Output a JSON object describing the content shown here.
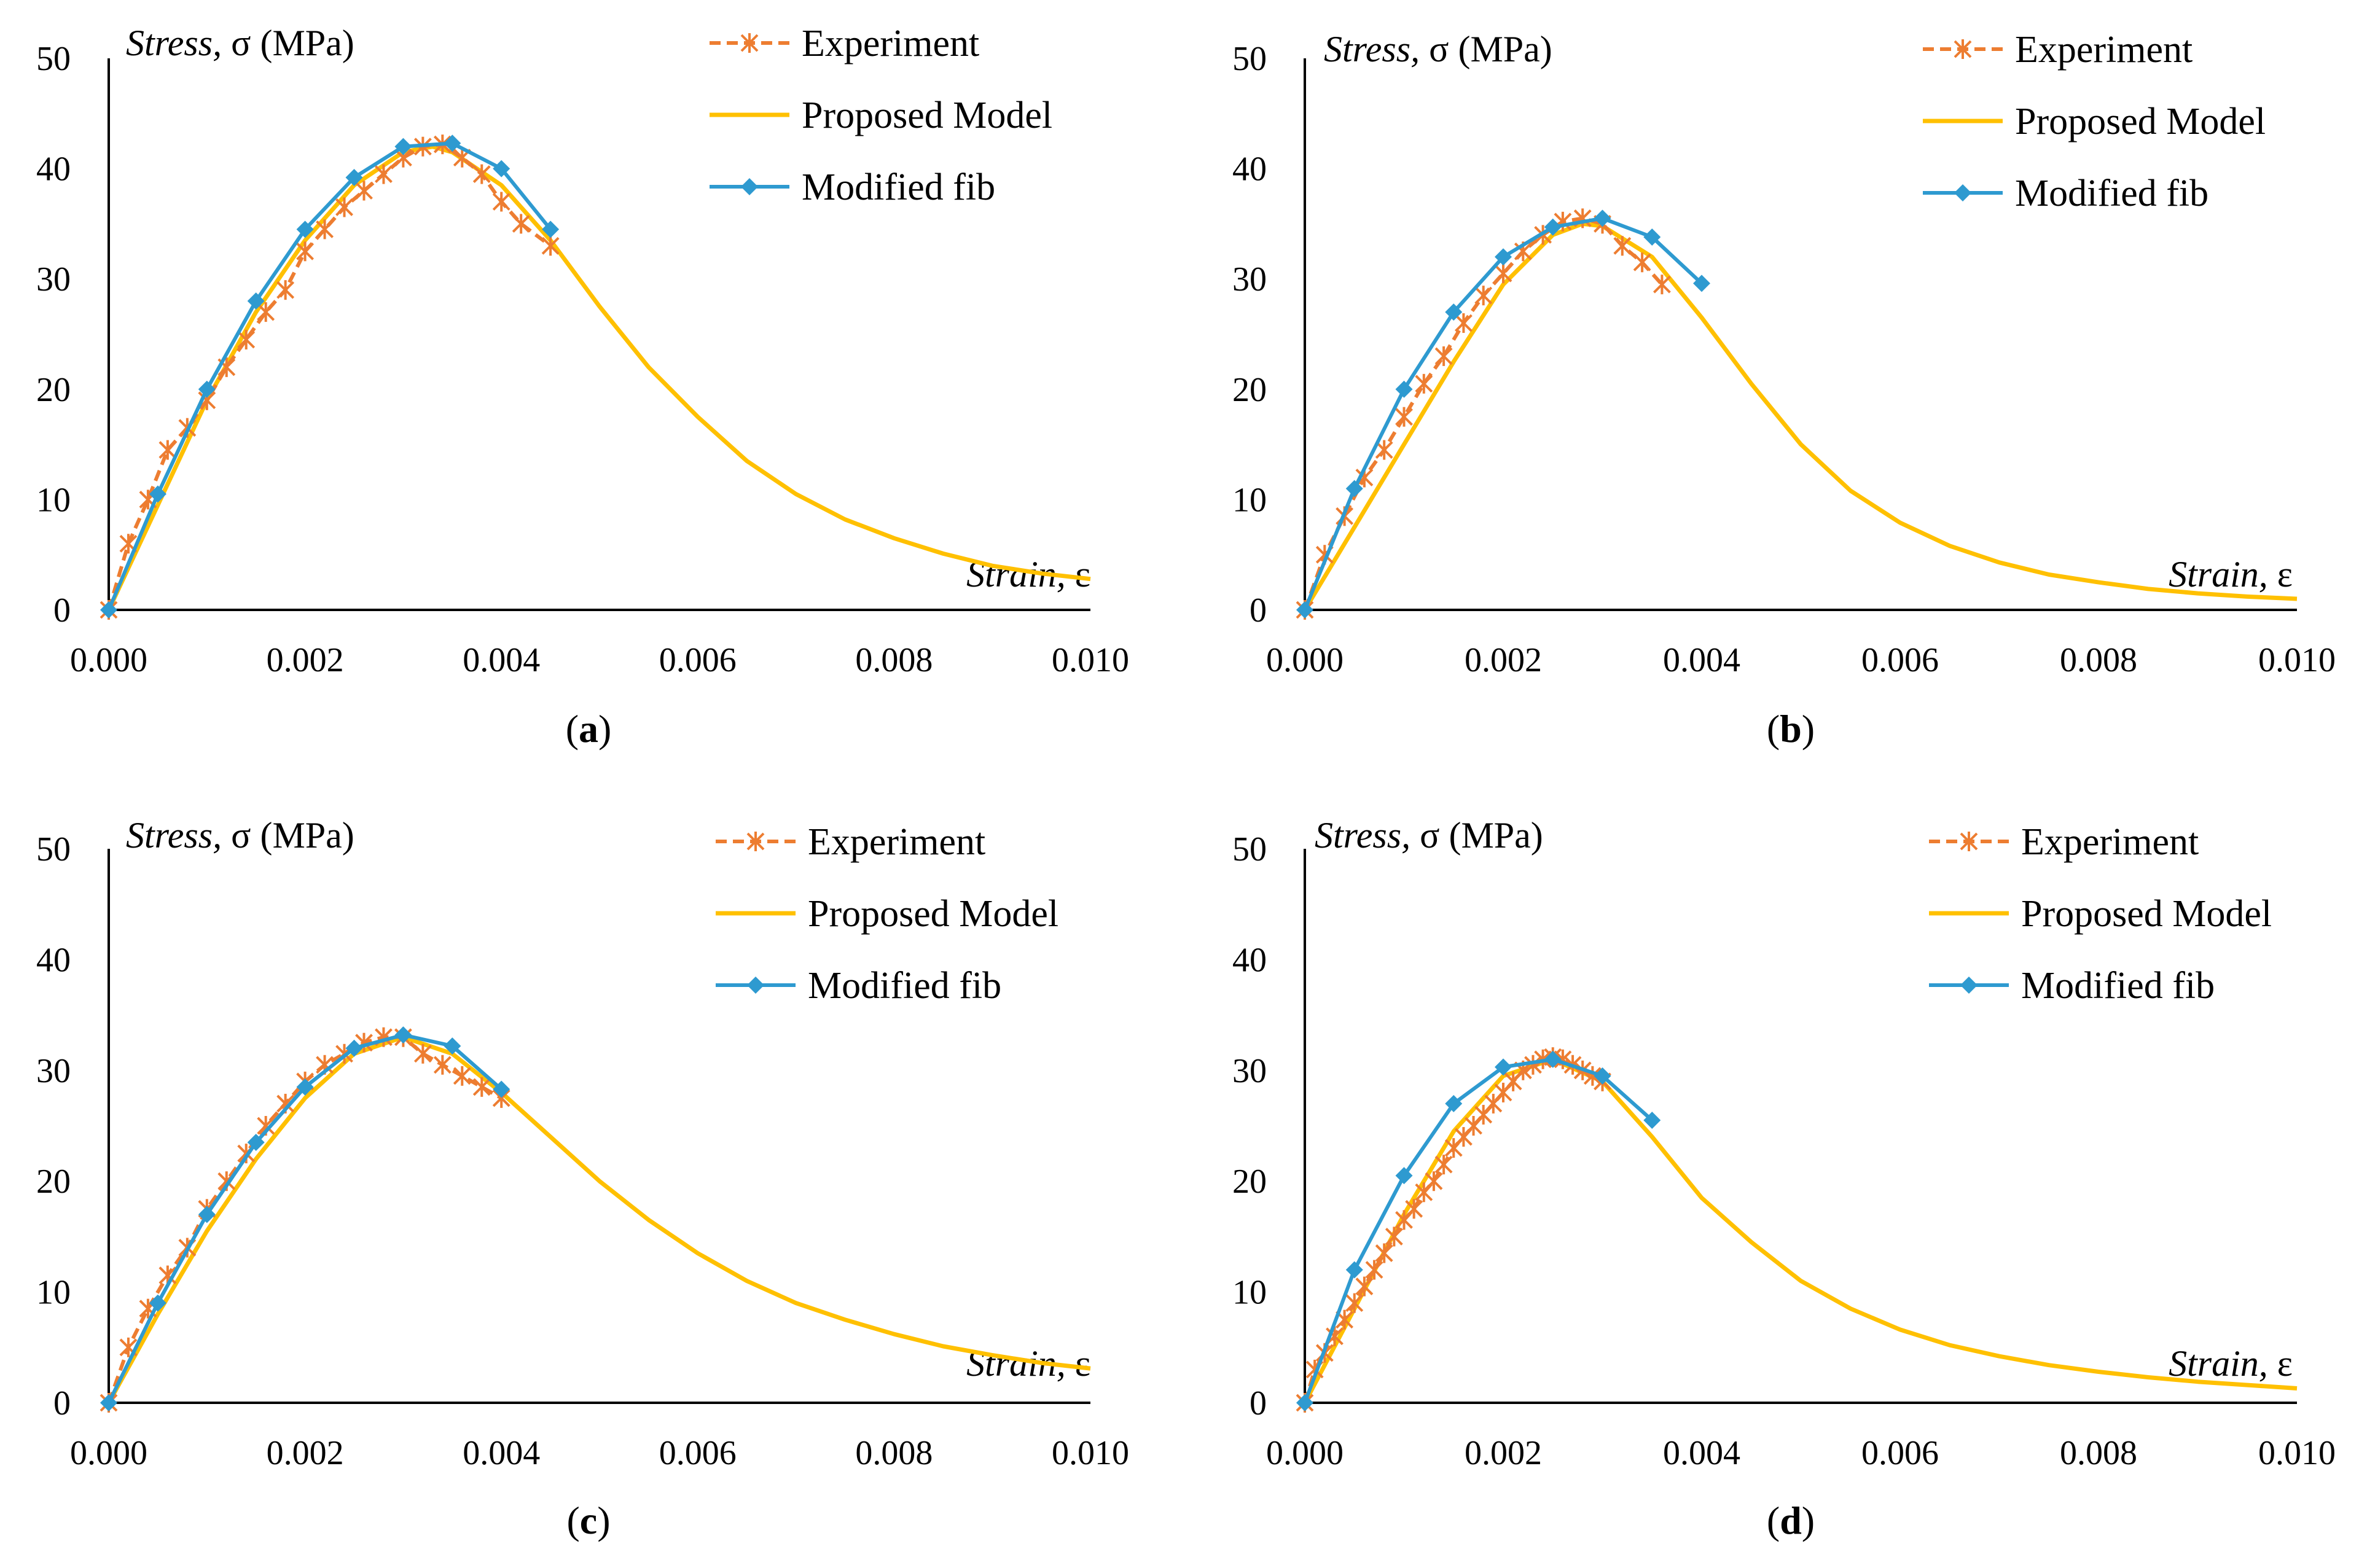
{
  "colors": {
    "experiment": "#ED7D31",
    "proposed": "#FFC000",
    "fib": "#2E9AD0",
    "axis": "#000000"
  },
  "chart_data": [
    {
      "panel": "a",
      "type": "line",
      "caption": "a",
      "ylabel_italic": "Stress,",
      "ylabel_rest": " σ (MPa)",
      "xlabel_italic": "Strain,",
      "xlabel_rest": " ε",
      "xlim": [
        0,
        0.01
      ],
      "ylim": [
        0,
        50
      ],
      "xticks": [
        "0.000",
        "0.002",
        "0.004",
        "0.006",
        "0.008",
        "0.010"
      ],
      "yticks": [
        "0",
        "10",
        "20",
        "30",
        "40",
        "50"
      ],
      "legend": [
        "Experiment",
        "Proposed Model",
        "Modified fib"
      ],
      "series": [
        {
          "name": "Experiment",
          "x": [
            0,
            0.0002,
            0.0004,
            0.0006,
            0.0008,
            0.001,
            0.0012,
            0.0014,
            0.0016,
            0.0018,
            0.002,
            0.0022,
            0.0024,
            0.0026,
            0.0028,
            0.003,
            0.0032,
            0.0034,
            0.0036,
            0.0038,
            0.004,
            0.0042,
            0.0045
          ],
          "y": [
            0,
            6,
            10,
            14.5,
            16.5,
            19,
            22,
            24.5,
            27,
            29,
            32.5,
            34.5,
            36.5,
            38,
            39.5,
            41,
            42,
            42.2,
            41,
            39.5,
            37,
            35,
            33
          ]
        },
        {
          "name": "Proposed Model",
          "x": [
            0,
            0.0005,
            0.001,
            0.0015,
            0.002,
            0.0025,
            0.003,
            0.0033,
            0.0035,
            0.004,
            0.0045,
            0.005,
            0.0055,
            0.006,
            0.0065,
            0.007,
            0.0075,
            0.008,
            0.0085,
            0.009,
            0.0095,
            0.01
          ],
          "y": [
            0,
            9.5,
            19,
            27,
            33.5,
            38.5,
            41.5,
            42,
            41.5,
            38.5,
            33.5,
            27.5,
            22,
            17.5,
            13.5,
            10.5,
            8.2,
            6.5,
            5.1,
            4,
            3.3,
            2.8
          ]
        },
        {
          "name": "Modified fib",
          "x": [
            0,
            0.0005,
            0.001,
            0.0015,
            0.002,
            0.0025,
            0.003,
            0.0035,
            0.004,
            0.0045
          ],
          "y": [
            0,
            10.5,
            20,
            28,
            34.5,
            39.2,
            42,
            42.3,
            40,
            34.5
          ]
        }
      ]
    },
    {
      "panel": "b",
      "type": "line",
      "caption": "b",
      "ylabel_italic": "Stress,",
      "ylabel_rest": " σ (MPa)",
      "xlabel_italic": "Strain,",
      "xlabel_rest": " ε",
      "xlim": [
        0,
        0.01
      ],
      "ylim": [
        0,
        50
      ],
      "xticks": [
        "0.000",
        "0.002",
        "0.004",
        "0.006",
        "0.008",
        "0.010"
      ],
      "yticks": [
        "0",
        "10",
        "20",
        "30",
        "40",
        "50"
      ],
      "legend": [
        "Experiment",
        "Proposed Model",
        "Modified fib"
      ],
      "series": [
        {
          "name": "Experiment",
          "x": [
            0,
            0.0002,
            0.0004,
            0.0006,
            0.0008,
            0.001,
            0.0012,
            0.0014,
            0.0016,
            0.0018,
            0.002,
            0.0022,
            0.0024,
            0.0026,
            0.0028,
            0.003,
            0.0032,
            0.0034,
            0.0036
          ],
          "y": [
            0,
            5,
            8.5,
            12,
            14.5,
            17.5,
            20.5,
            23,
            26,
            28.5,
            30.5,
            32.5,
            34,
            35.2,
            35.5,
            35,
            33,
            31.5,
            29.5
          ]
        },
        {
          "name": "Proposed Model",
          "x": [
            0,
            0.0005,
            0.001,
            0.0015,
            0.002,
            0.0025,
            0.0028,
            0.003,
            0.0035,
            0.004,
            0.0045,
            0.005,
            0.0055,
            0.006,
            0.0065,
            0.007,
            0.0075,
            0.008,
            0.0085,
            0.009,
            0.0095,
            0.01
          ],
          "y": [
            0,
            7.5,
            15,
            22.5,
            29.5,
            34,
            35,
            34.8,
            32,
            26.5,
            20.5,
            15,
            10.8,
            7.9,
            5.8,
            4.3,
            3.2,
            2.5,
            1.9,
            1.5,
            1.2,
            1
          ]
        },
        {
          "name": "Modified fib",
          "x": [
            0,
            0.0005,
            0.001,
            0.0015,
            0.002,
            0.0025,
            0.003,
            0.0035,
            0.004
          ],
          "y": [
            0,
            11,
            20,
            27,
            32,
            34.7,
            35.5,
            33.8,
            29.6
          ]
        }
      ]
    },
    {
      "panel": "c",
      "type": "line",
      "caption": "c",
      "ylabel_italic": "Stress,",
      "ylabel_rest": " σ (MPa)",
      "xlabel_italic": "Strain,",
      "xlabel_rest": " ε",
      "xlim": [
        0,
        0.01
      ],
      "ylim": [
        0,
        50
      ],
      "xticks": [
        "0.000",
        "0.002",
        "0.004",
        "0.006",
        "0.008",
        "0.010"
      ],
      "yticks": [
        "0",
        "10",
        "20",
        "30",
        "40",
        "50"
      ],
      "legend": [
        "Experiment",
        "Proposed Model",
        "Modified fib"
      ],
      "series": [
        {
          "name": "Experiment",
          "x": [
            0,
            0.0002,
            0.0004,
            0.0006,
            0.0008,
            0.001,
            0.0012,
            0.0014,
            0.0016,
            0.0018,
            0.002,
            0.0022,
            0.0024,
            0.0026,
            0.0028,
            0.003,
            0.0032,
            0.0034,
            0.0036,
            0.0038,
            0.004
          ],
          "y": [
            0,
            5,
            8.5,
            11.5,
            14,
            17.5,
            20,
            22.5,
            25,
            27,
            29,
            30.5,
            31.5,
            32.5,
            33,
            33,
            31.5,
            30.5,
            29.5,
            28.5,
            27.5
          ]
        },
        {
          "name": "Proposed Model",
          "x": [
            0,
            0.0005,
            0.001,
            0.0015,
            0.002,
            0.0025,
            0.003,
            0.0035,
            0.004,
            0.0045,
            0.005,
            0.0055,
            0.006,
            0.0065,
            0.007,
            0.0075,
            0.008,
            0.0085,
            0.009,
            0.0095,
            0.01
          ],
          "y": [
            0,
            8,
            15.5,
            22,
            27.5,
            31.5,
            33,
            31.5,
            28,
            24,
            20,
            16.5,
            13.5,
            11,
            9,
            7.5,
            6.2,
            5.1,
            4.3,
            3.6,
            3.1
          ]
        },
        {
          "name": "Modified fib",
          "x": [
            0,
            0.0005,
            0.001,
            0.0015,
            0.002,
            0.0025,
            0.003,
            0.0035,
            0.004
          ],
          "y": [
            0,
            9,
            17,
            23.5,
            28.5,
            32,
            33.2,
            32.2,
            28.3
          ]
        }
      ]
    },
    {
      "panel": "d",
      "type": "line",
      "caption": "d",
      "ylabel_italic": "Stress,",
      "ylabel_rest": " σ (MPa)",
      "xlabel_italic": "Strain,",
      "xlabel_rest": " ε",
      "xlim": [
        0,
        0.01
      ],
      "ylim": [
        0,
        50
      ],
      "xticks": [
        "0.000",
        "0.002",
        "0.004",
        "0.006",
        "0.008",
        "0.010"
      ],
      "yticks": [
        "0",
        "10",
        "20",
        "30",
        "40",
        "50"
      ],
      "legend": [
        "Experiment",
        "Proposed Model",
        "Modified fib"
      ],
      "series": [
        {
          "name": "Experiment",
          "x": [
            0,
            0.0001,
            0.0002,
            0.0003,
            0.0004,
            0.0005,
            0.0006,
            0.0007,
            0.0008,
            0.0009,
            0.001,
            0.0011,
            0.0012,
            0.0013,
            0.0014,
            0.0015,
            0.0016,
            0.0017,
            0.0018,
            0.0019,
            0.002,
            0.0021,
            0.0022,
            0.0023,
            0.0024,
            0.0025,
            0.0026,
            0.0027,
            0.0028,
            0.0029,
            0.003
          ],
          "y": [
            0,
            3,
            4.5,
            6,
            7.5,
            9,
            10.5,
            12,
            13.5,
            15,
            16.5,
            17.5,
            19,
            20,
            21.5,
            23,
            24,
            25,
            26,
            27,
            28,
            29,
            30,
            30.5,
            31,
            31.2,
            31,
            30.5,
            30,
            29.5,
            29
          ]
        },
        {
          "name": "Proposed Model",
          "x": [
            0,
            0.0005,
            0.001,
            0.0015,
            0.002,
            0.0025,
            0.003,
            0.0035,
            0.004,
            0.0045,
            0.005,
            0.0055,
            0.006,
            0.0065,
            0.007,
            0.0075,
            0.008,
            0.0085,
            0.009,
            0.0095,
            0.01
          ],
          "y": [
            0,
            8.5,
            17,
            24.5,
            29.5,
            31,
            29,
            24,
            18.5,
            14.5,
            11,
            8.5,
            6.6,
            5.2,
            4.2,
            3.4,
            2.8,
            2.3,
            1.9,
            1.6,
            1.3
          ]
        },
        {
          "name": "Modified fib",
          "x": [
            0,
            0.0005,
            0.001,
            0.0015,
            0.002,
            0.0025,
            0.003,
            0.0035
          ],
          "y": [
            0,
            12,
            20.5,
            27,
            30.3,
            31,
            29.5,
            25.5
          ]
        }
      ]
    }
  ]
}
